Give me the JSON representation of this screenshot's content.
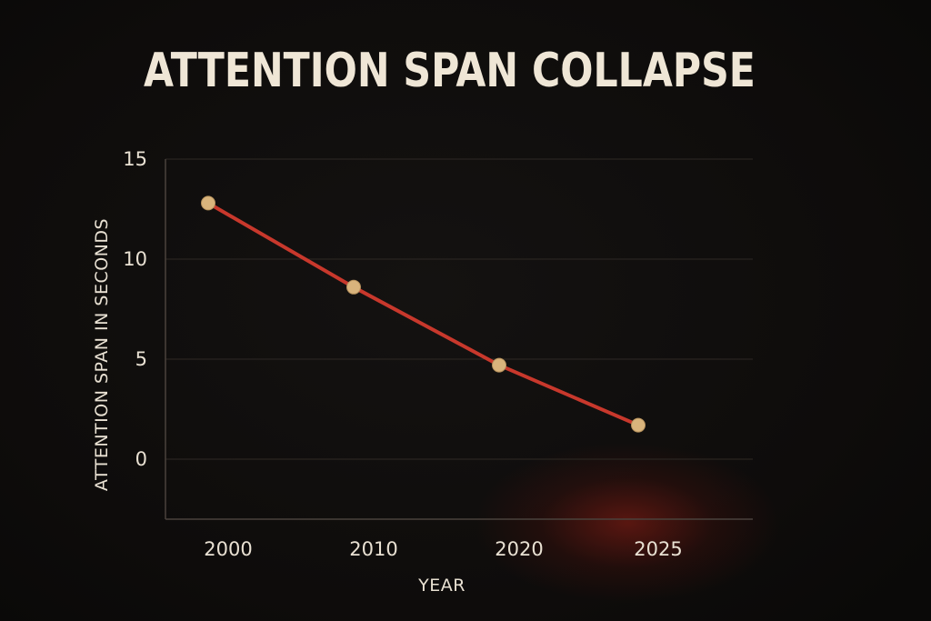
{
  "chart_data": {
    "type": "line",
    "title": "ATTENTION SPAN COLLAPSE",
    "xlabel": "YEAR",
    "ylabel": "ATTENTION SPAN IN SECONDS",
    "categories": [
      "2000",
      "2010",
      "2020",
      "2025"
    ],
    "yticks": [
      0,
      5,
      10,
      15
    ],
    "ylim": [
      -3,
      15
    ],
    "grid": true,
    "series": [
      {
        "values": [
          12.8,
          8.6,
          4.7,
          1.7
        ]
      }
    ]
  },
  "colors": {
    "background": "#0f0d0c",
    "line": "#c8382c",
    "marker": "#d9b47c",
    "grid": "#2f2925",
    "text": "#e9e1d3"
  }
}
